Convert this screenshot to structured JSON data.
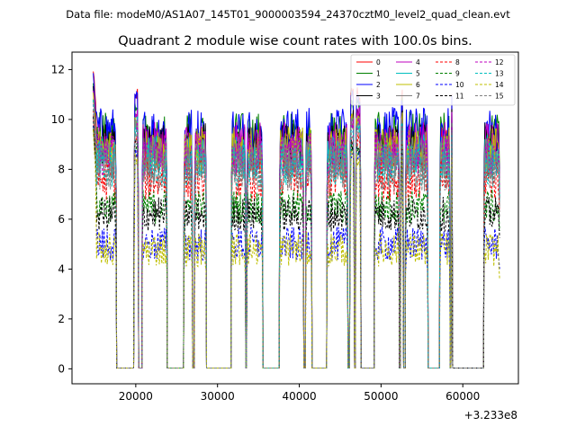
{
  "chart_data": {
    "type": "line",
    "suptitle": "Data file: modeM0/AS1A07_145T01_9000003594_24370cztM0_level2_quad_clean.evt",
    "title": "Quadrant 2 module wise count rates with 100.0s bins.",
    "xlabel": "",
    "ylabel": "",
    "offset_text": "+3.233e8",
    "xlim": [
      12200,
      66800
    ],
    "ylim": [
      -0.6,
      12.7
    ],
    "x_ticks": [
      20000,
      30000,
      40000,
      50000,
      60000
    ],
    "x_tick_labels": [
      "20000",
      "30000",
      "40000",
      "50000",
      "60000"
    ],
    "y_ticks": [
      0,
      2,
      4,
      6,
      8,
      10,
      12
    ],
    "y_tick_labels": [
      "0",
      "2",
      "4",
      "6",
      "8",
      "10",
      "12"
    ],
    "gti_segments": [
      [
        14800,
        17600
      ],
      [
        19800,
        20300
      ],
      [
        20800,
        23800
      ],
      [
        25900,
        26900
      ],
      [
        27200,
        28600
      ],
      [
        31700,
        33400
      ],
      [
        33600,
        35500
      ],
      [
        37600,
        40500
      ],
      [
        40800,
        41500
      ],
      [
        43400,
        45900
      ],
      [
        46200,
        46700
      ],
      [
        46900,
        47500
      ],
      [
        49200,
        52200
      ],
      [
        52400,
        52700
      ],
      [
        53000,
        55700
      ],
      [
        57200,
        58400
      ],
      [
        58600,
        58700
      ],
      [
        62600,
        64500
      ]
    ],
    "series": [
      {
        "name": "0",
        "color": "#ff0000",
        "dash": "solid",
        "level": 8.8,
        "spike": 12.0
      },
      {
        "name": "1",
        "color": "#008000",
        "dash": "solid",
        "level": 9.4,
        "spike": 11.6
      },
      {
        "name": "2",
        "color": "#0000ff",
        "dash": "solid",
        "level": 9.6,
        "spike": 11.9
      },
      {
        "name": "3",
        "color": "#000000",
        "dash": "solid",
        "level": 9.0,
        "spike": 11.2
      },
      {
        "name": "4",
        "color": "#bf00bf",
        "dash": "solid",
        "level": 9.0,
        "spike": 11.2
      },
      {
        "name": "5",
        "color": "#00bfbf",
        "dash": "solid",
        "level": 8.5,
        "spike": 10.9
      },
      {
        "name": "6",
        "color": "#bfbf00",
        "dash": "solid",
        "level": 8.8,
        "spike": 11.0
      },
      {
        "name": "7",
        "color": "#808080",
        "dash": "solid",
        "level": 8.4,
        "spike": 10.8
      },
      {
        "name": "8",
        "color": "#ff0000",
        "dash": "dashed",
        "level": 7.6,
        "spike": 10.2
      },
      {
        "name": "9",
        "color": "#008000",
        "dash": "dashed",
        "level": 6.5,
        "spike": 9.8
      },
      {
        "name": "10",
        "color": "#0000ff",
        "dash": "dashed",
        "level": 5.0,
        "spike": 9.6
      },
      {
        "name": "11",
        "color": "#000000",
        "dash": "dashed",
        "level": 6.2,
        "spike": 10.0
      },
      {
        "name": "12",
        "color": "#bf00bf",
        "dash": "dashed",
        "level": 8.6,
        "spike": 10.8
      },
      {
        "name": "13",
        "color": "#00bfbf",
        "dash": "dashed",
        "level": 8.2,
        "spike": 10.6
      },
      {
        "name": "14",
        "color": "#bfbf00",
        "dash": "dashed",
        "level": 4.8,
        "spike": 9.4
      },
      {
        "name": "15",
        "color": "#808080",
        "dash": "dashed",
        "level": 8.0,
        "spike": 10.4
      }
    ]
  }
}
